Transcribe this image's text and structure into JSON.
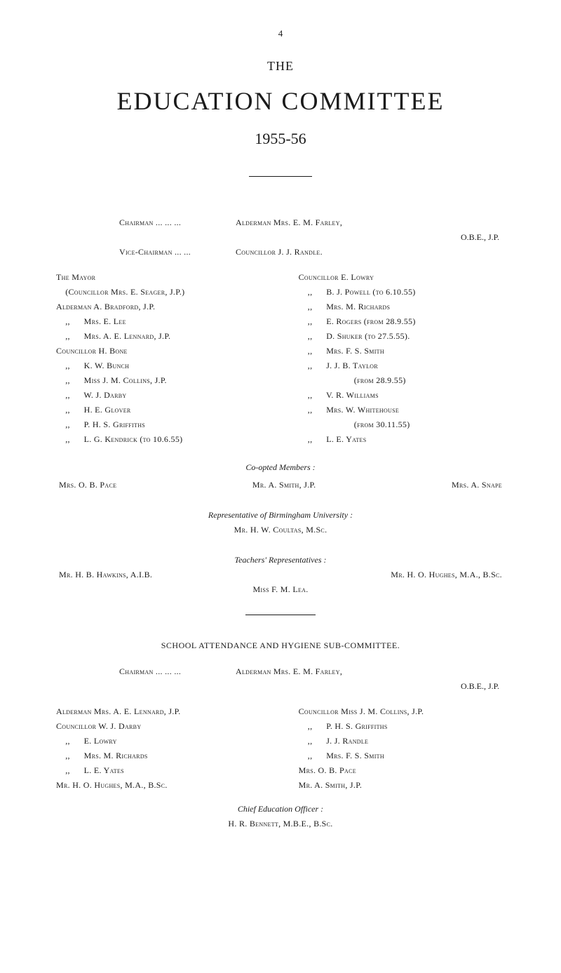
{
  "page_number": "4",
  "heading_the": "THE",
  "title": "EDUCATION COMMITTEE",
  "year": "1955-56",
  "chairman_row": {
    "left": "Chairman   ...   ...   ...",
    "right": "Alderman Mrs. E. M. Farley,",
    "right2": "O.B.E., J.P."
  },
  "vice_chairman_row": {
    "left": "Vice-Chairman    ...   ...",
    "right": "Councillor J. J. Randle."
  },
  "left_list": [
    "The Mayor",
    "    (Councillor Mrs. E. Seager, J.P.)",
    "Alderman A. Bradford, J.P.",
    "    ,,      Mrs. E. Lee",
    "    ,,      Mrs. A. E. Lennard, J.P.",
    "Councillor H. Bone",
    "    ,,      K. W. Bunch",
    "    ,,      Miss J. M. Collins, J.P.",
    "    ,,      W. J. Darby",
    "    ,,      H. E. Glover",
    "    ,,      P. H. S. Griffiths",
    "    ,,      L. G. Kendrick (to 10.6.55)"
  ],
  "right_list": [
    "Councillor E. Lowry",
    "    ,,      B. J. Powell (to 6.10.55)",
    "    ,,      Mrs. M. Richards",
    "    ,,      E. Rogers (from 28.9.55)",
    "    ,,      D. Shuker (to 27.5.55).",
    "    ,,      Mrs. F. S. Smith",
    "    ,,      J. J. B. Taylor",
    "                        (from 28.9.55)",
    "    ,,      V. R. Williams",
    "    ,,      Mrs. W. Whitehouse",
    "                        (from 30.11.55)",
    "    ,,      L. E. Yates"
  ],
  "coopted": {
    "label": "Co-opted Members :",
    "left": "Mrs. O. B. Pace",
    "center": "Mr. A. Smith, J.P.",
    "right": "Mrs. A. Snape"
  },
  "representative": {
    "label": "Representative of Birmingham University :",
    "name": "Mr. H. W. Coultas, M.Sc."
  },
  "teachers": {
    "label": "Teachers' Representatives :",
    "left": "Mr. H. B. Hawkins, A.I.B.",
    "right": "Mr. H. O. Hughes, M.A., B.Sc.",
    "center": "Miss F. M. Lea."
  },
  "subcommittee": {
    "title": "SCHOOL ATTENDANCE AND HYGIENE SUB-COMMITTEE.",
    "chairman_left": "Chairman   ...   ...   ...",
    "chairman_right": "Alderman Mrs. E. M. Farley,",
    "chairman_right2": "O.B.E., J.P.",
    "left_list": [
      "Alderman Mrs. A. E. Lennard, J.P.",
      "Councillor W. J. Darby",
      "    ,,      E. Lowry",
      "    ,,      Mrs. M. Richards",
      "    ,,      L. E. Yates",
      "Mr. H. O. Hughes, M.A., B.Sc."
    ],
    "right_list": [
      "Councillor Miss J. M. Collins, J.P.",
      "    ,,      P. H. S. Griffiths",
      "    ,,      J. J. Randle",
      "    ,,      Mrs. F. S. Smith",
      "Mrs. O. B. Pace",
      "Mr. A. Smith, J.P."
    ]
  },
  "officer": {
    "label": "Chief Education Officer :",
    "name": "H. R. Bennett, M.B.E., B.Sc."
  }
}
